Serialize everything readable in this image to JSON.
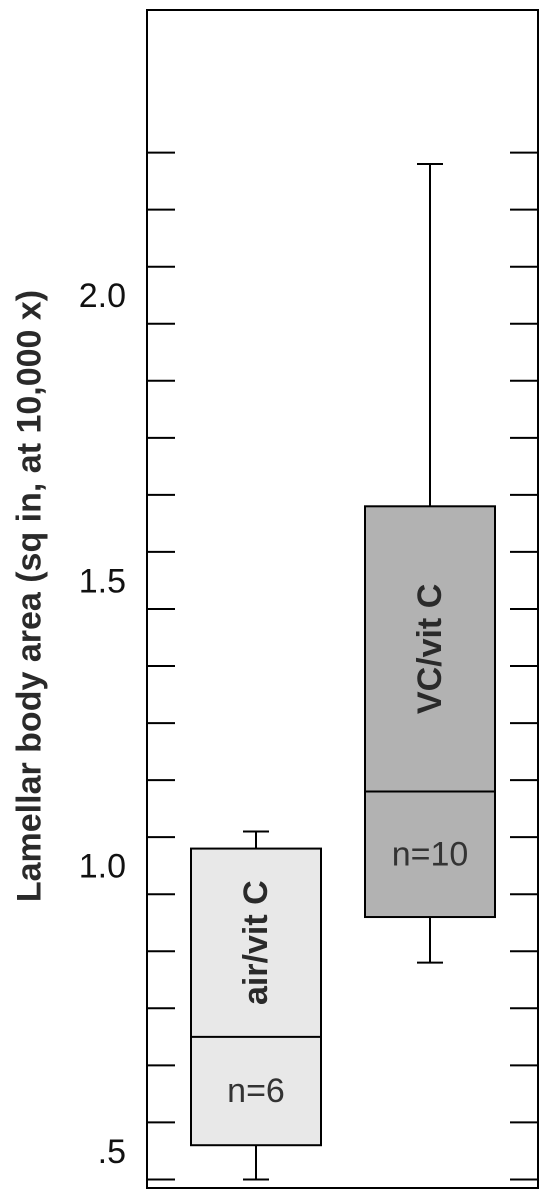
{
  "chart_data": {
    "type": "box",
    "ylabel": "Lamellar body area (sq in, at 10,000 x)",
    "ylim": [
      0.435,
      2.5
    ],
    "yticks": [
      {
        "value": 0.5,
        "label": ".5"
      },
      {
        "value": 1.0,
        "label": "1.0"
      },
      {
        "value": 1.5,
        "label": "1.5"
      },
      {
        "value": 2.0,
        "label": "2.0"
      }
    ],
    "minor_tick_step": 0.1,
    "minor_tick_range": [
      0.45,
      2.25
    ],
    "grid": false,
    "series": [
      {
        "name": "air/vit C",
        "n_label": "n=6",
        "whisker_low": 0.45,
        "q1": 0.51,
        "median": 0.7,
        "q3": 1.03,
        "whisker_high": 1.06,
        "fill": "#e8e8e8"
      },
      {
        "name": "VC/vit C",
        "n_label": "n=10",
        "whisker_low": 0.83,
        "q1": 0.91,
        "median": 1.13,
        "q3": 1.63,
        "whisker_high": 2.23,
        "fill": "#b2b2b2"
      }
    ]
  }
}
